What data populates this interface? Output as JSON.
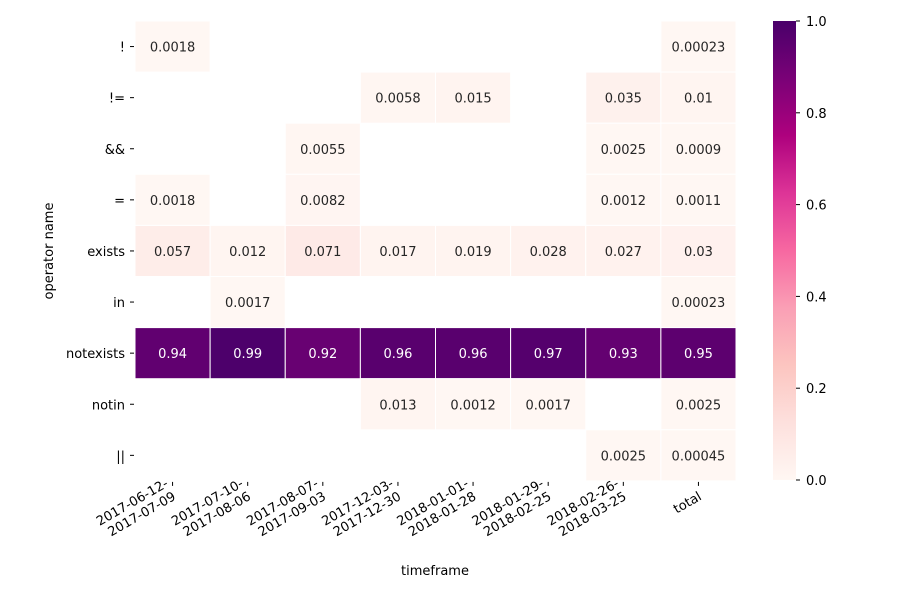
{
  "chart_data": {
    "type": "heatmap",
    "title": "",
    "xlabel": "timeframe",
    "ylabel": "operator name",
    "x": [
      [
        "2017-06-12-",
        "2017-07-09"
      ],
      [
        "2017-07-10-",
        "2017-08-06"
      ],
      [
        "2017-08-07-",
        "2017-09-03"
      ],
      [
        "2017-12-03-",
        "2017-12-30"
      ],
      [
        "2018-01-01-",
        "2018-01-28"
      ],
      [
        "2018-01-29-",
        "2018-02-25"
      ],
      [
        "2018-02-26-",
        "2018-03-25"
      ],
      [
        "total"
      ]
    ],
    "y": [
      "!",
      "!=",
      "&&",
      "=",
      "exists",
      "in",
      "notexists",
      "notin",
      "||"
    ],
    "values": [
      [
        0.0018,
        null,
        null,
        null,
        null,
        null,
        null,
        0.00023
      ],
      [
        null,
        null,
        null,
        0.0058,
        0.015,
        null,
        0.035,
        0.01
      ],
      [
        null,
        null,
        0.0055,
        null,
        null,
        null,
        0.0025,
        0.0009
      ],
      [
        0.0018,
        null,
        0.0082,
        null,
        null,
        null,
        0.0012,
        0.0011
      ],
      [
        0.057,
        0.012,
        0.071,
        0.017,
        0.019,
        0.028,
        0.027,
        0.03
      ],
      [
        null,
        0.0017,
        null,
        null,
        null,
        null,
        null,
        0.00023
      ],
      [
        0.94,
        0.99,
        0.92,
        0.96,
        0.96,
        0.97,
        0.93,
        0.95
      ],
      [
        null,
        null,
        null,
        0.013,
        0.0012,
        0.0017,
        null,
        0.0025
      ],
      [
        null,
        null,
        null,
        null,
        null,
        null,
        0.0025,
        0.00045
      ]
    ],
    "labels": [
      [
        "0.0018",
        null,
        null,
        null,
        null,
        null,
        null,
        "0.00023"
      ],
      [
        null,
        null,
        null,
        "0.0058",
        "0.015",
        null,
        "0.035",
        "0.01"
      ],
      [
        null,
        null,
        "0.0055",
        null,
        null,
        null,
        "0.0025",
        "0.0009"
      ],
      [
        "0.0018",
        null,
        "0.0082",
        null,
        null,
        null,
        "0.0012",
        "0.0011"
      ],
      [
        "0.057",
        "0.012",
        "0.071",
        "0.017",
        "0.019",
        "0.028",
        "0.027",
        "0.03"
      ],
      [
        null,
        "0.0017",
        null,
        null,
        null,
        null,
        null,
        "0.00023"
      ],
      [
        "0.94",
        "0.99",
        "0.92",
        "0.96",
        "0.96",
        "0.97",
        "0.93",
        "0.95"
      ],
      [
        null,
        null,
        null,
        "0.013",
        "0.0012",
        "0.0017",
        null,
        "0.0025"
      ],
      [
        null,
        null,
        null,
        null,
        null,
        null,
        "0.0025",
        "0.00045"
      ]
    ],
    "colorbar": {
      "range": [
        0,
        1
      ],
      "ticks": [
        "0.0",
        "0.2",
        "0.4",
        "0.6",
        "0.8",
        "1.0"
      ],
      "colormap": "RdPu",
      "stops": [
        "#fff7f3",
        "#fde0dd",
        "#fcc5c0",
        "#fa9fb5",
        "#f768a1",
        "#dd3497",
        "#ae017e",
        "#7a0177",
        "#49006a"
      ]
    },
    "grid": false
  }
}
